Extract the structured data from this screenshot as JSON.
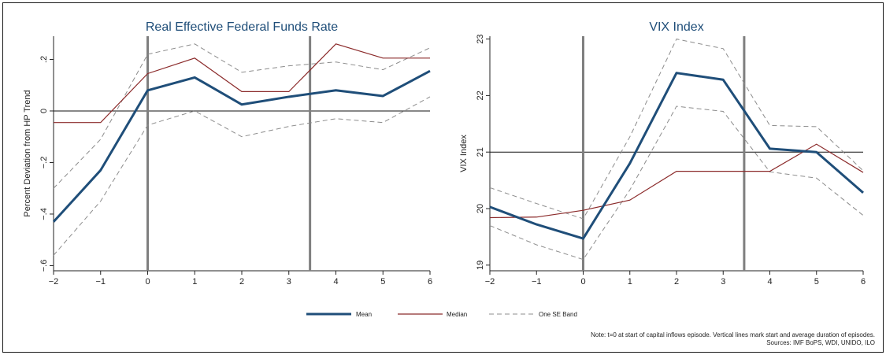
{
  "chart_data": [
    {
      "type": "line",
      "title": "Real Effective Federal Funds Rate",
      "xlabel": "",
      "ylabel": "Percent Deviation from HP Trend",
      "x": [
        -2,
        -1,
        0,
        1,
        2,
        3,
        4,
        5,
        6
      ],
      "xticks": [
        "−2",
        "−1",
        "0",
        "1",
        "2",
        "3",
        "4",
        "5",
        "6"
      ],
      "yticks": [
        "−.6",
        "−.4",
        "−.2",
        "0",
        ".2"
      ],
      "ytick_values": [
        -0.6,
        -0.4,
        -0.2,
        0,
        0.2
      ],
      "xlim": [
        -2,
        6
      ],
      "ylim": [
        -0.62,
        0.29
      ],
      "reference_hline": 0,
      "reference_vlines": [
        0,
        3.45
      ],
      "series": [
        {
          "name": "Mean",
          "values": [
            -0.43,
            -0.23,
            0.08,
            0.13,
            0.025,
            0.055,
            0.08,
            0.058,
            0.155
          ]
        },
        {
          "name": "Median",
          "values": [
            -0.045,
            -0.045,
            0.145,
            0.205,
            0.075,
            0.075,
            0.26,
            0.205,
            0.205
          ]
        },
        {
          "name": "One SE Band",
          "values": [
            -0.3,
            -0.11,
            0.22,
            0.26,
            0.15,
            0.175,
            0.19,
            0.16,
            0.245
          ]
        },
        {
          "name": "One SE Band",
          "values": [
            -0.56,
            -0.35,
            -0.055,
            0.0,
            -0.1,
            -0.06,
            -0.03,
            -0.045,
            0.055
          ]
        }
      ]
    },
    {
      "type": "line",
      "title": "VIX Index",
      "xlabel": "",
      "ylabel": "VIX Index",
      "x": [
        -2,
        -1,
        0,
        1,
        2,
        3,
        4,
        5,
        6
      ],
      "xticks": [
        "−2",
        "−1",
        "0",
        "1",
        "2",
        "3",
        "4",
        "5",
        "6"
      ],
      "yticks": [
        "19",
        "20",
        "21",
        "22",
        "23"
      ],
      "ytick_values": [
        19,
        20,
        21,
        22,
        23
      ],
      "xlim": [
        -2,
        6
      ],
      "ylim": [
        18.9,
        23.05
      ],
      "reference_hline": 21,
      "reference_vlines": [
        0,
        3.45
      ],
      "series": [
        {
          "name": "Mean",
          "values": [
            20.03,
            19.72,
            19.47,
            20.8,
            22.4,
            22.28,
            21.06,
            21.0,
            20.28
          ]
        },
        {
          "name": "Median",
          "values": [
            19.84,
            19.85,
            19.97,
            20.15,
            20.66,
            20.66,
            20.66,
            21.14,
            20.64
          ]
        },
        {
          "name": "One SE Band",
          "values": [
            20.37,
            20.09,
            19.82,
            21.27,
            23.0,
            22.83,
            21.47,
            21.45,
            20.67
          ]
        },
        {
          "name": "One SE Band",
          "values": [
            19.7,
            19.36,
            19.1,
            20.33,
            21.81,
            21.72,
            20.65,
            20.54,
            19.88
          ]
        }
      ]
    }
  ],
  "legend": {
    "mean_label": "Mean",
    "median_label": "Median",
    "band_label": "One SE Band"
  },
  "note": {
    "line1": "Note: t=0 at start of capital inflows episode. Vertical lines mark start and average duration of episodes.",
    "line2": "Sources: IMF BoPS, WDI, UNIDO, ILO"
  },
  "colors": {
    "mean": "#1f4e79",
    "median": "#8b2a2a",
    "band": "#8c8c8c",
    "vline": "#7f7f7f",
    "title": "#1f4e79"
  }
}
